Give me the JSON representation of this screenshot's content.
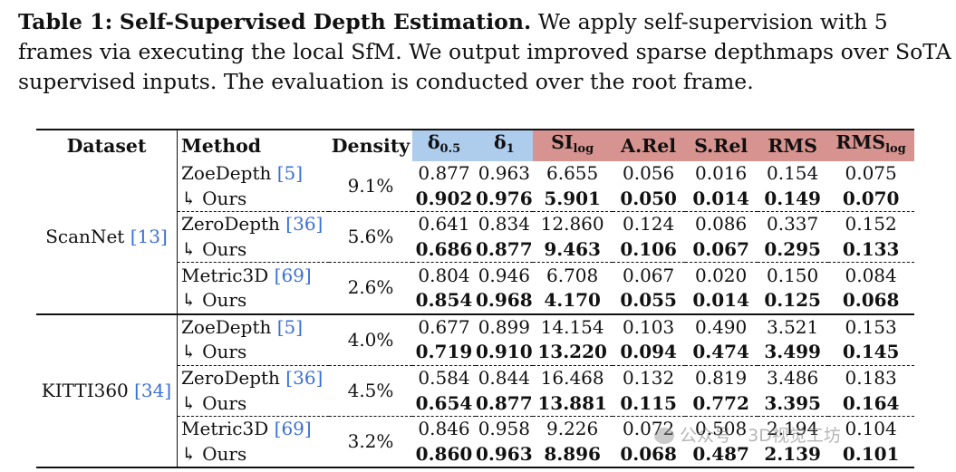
{
  "caption": {
    "label": "Table 1:",
    "title": "Self-Supervised Depth Estimation.",
    "text": "We apply self-supervision with 5 frames via executing the local SfM. We output improved sparse depthmaps over SoTA supervised inputs. The evaluation is conducted over the root frame."
  },
  "headers": {
    "dataset": "Dataset",
    "method": "Method",
    "density": "Density",
    "delta05": "δ",
    "delta05_sub": "0.5",
    "delta1": "δ",
    "delta1_sub": "1",
    "silog": "SI",
    "silog_sub": "log",
    "arel": "A.Rel",
    "srel": "S.Rel",
    "rms": "RMS",
    "rmslog": "RMS",
    "rmslog_sub": "log"
  },
  "ours_label": "↳ Ours",
  "colors": {
    "delta_header": "#aeccec",
    "error_header": "#d7938f",
    "citation": "#3b6fd6"
  },
  "groups": [
    {
      "dataset": "ScanNet",
      "cite": "[13]",
      "methods": [
        {
          "name": "ZoeDepth",
          "cite": "[5]",
          "density": "9.1%",
          "base": [
            "0.877",
            "0.963",
            "6.655",
            "0.056",
            "0.016",
            "0.154",
            "0.075"
          ],
          "ours": [
            "0.902",
            "0.976",
            "5.901",
            "0.050",
            "0.014",
            "0.149",
            "0.070"
          ]
        },
        {
          "name": "ZeroDepth",
          "cite": "[36]",
          "density": "5.6%",
          "base": [
            "0.641",
            "0.834",
            "12.860",
            "0.124",
            "0.086",
            "0.337",
            "0.152"
          ],
          "ours": [
            "0.686",
            "0.877",
            "9.463",
            "0.106",
            "0.067",
            "0.295",
            "0.133"
          ]
        },
        {
          "name": "Metric3D",
          "cite": "[69]",
          "density": "2.6%",
          "base": [
            "0.804",
            "0.946",
            "6.708",
            "0.067",
            "0.020",
            "0.150",
            "0.084"
          ],
          "ours": [
            "0.854",
            "0.968",
            "4.170",
            "0.055",
            "0.014",
            "0.125",
            "0.068"
          ]
        }
      ]
    },
    {
      "dataset": "KITTI360",
      "cite": "[34]",
      "methods": [
        {
          "name": "ZoeDepth",
          "cite": "[5]",
          "density": "4.0%",
          "base": [
            "0.677",
            "0.899",
            "14.154",
            "0.103",
            "0.490",
            "3.521",
            "0.153"
          ],
          "ours": [
            "0.719",
            "0.910",
            "13.220",
            "0.094",
            "0.474",
            "3.499",
            "0.145"
          ]
        },
        {
          "name": "ZeroDepth",
          "cite": "[36]",
          "density": "4.5%",
          "base": [
            "0.584",
            "0.844",
            "16.468",
            "0.132",
            "0.819",
            "3.486",
            "0.183"
          ],
          "ours": [
            "0.654",
            "0.877",
            "13.881",
            "0.115",
            "0.772",
            "3.395",
            "0.164"
          ]
        },
        {
          "name": "Metric3D",
          "cite": "[69]",
          "density": "3.2%",
          "base": [
            "0.846",
            "0.958",
            "9.226",
            "0.072",
            "0.508",
            "2.194",
            "0.104"
          ],
          "ours": [
            "0.860",
            "0.963",
            "8.896",
            "0.068",
            "0.487",
            "2.139",
            "0.101"
          ]
        }
      ]
    }
  ],
  "watermark": "公众号 · 3D视觉工坊"
}
